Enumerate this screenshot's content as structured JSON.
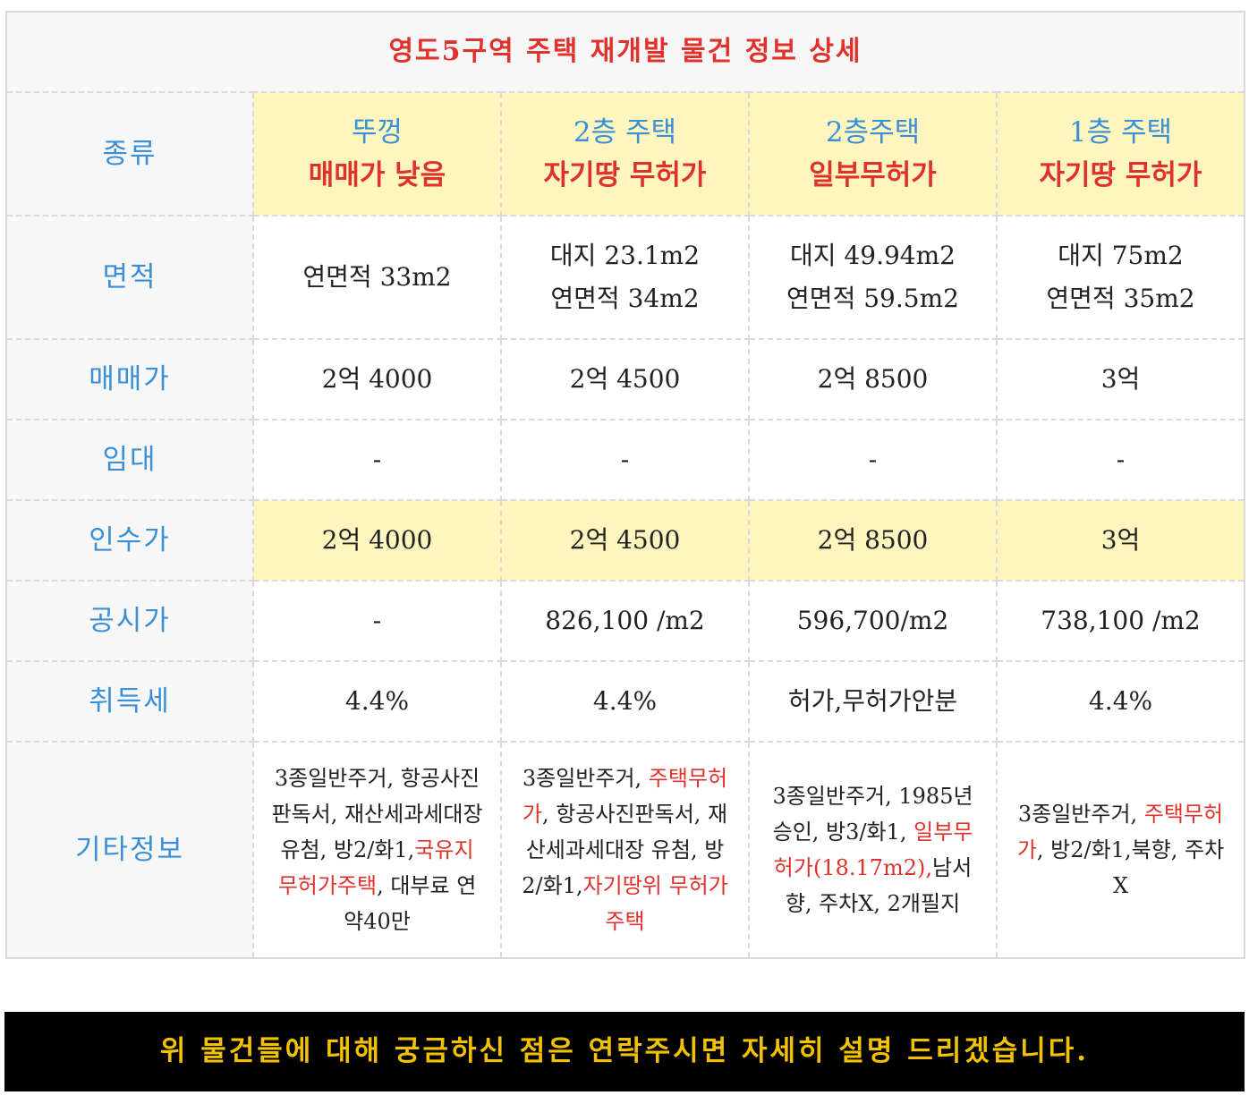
{
  "title": "영도5구역 주택 재개발 물건 정보 상세",
  "labels": {
    "type": "종류",
    "area": "면적",
    "sale": "매매가",
    "rent": "임대",
    "acq": "인수가",
    "official": "공시가",
    "tax": "취득세",
    "notes": "기타정보"
  },
  "columns": [
    {
      "type_line1": "뚜껑",
      "type_line2": "매매가 낮음",
      "area_line1": "연면적 33m2",
      "area_line2": "",
      "sale": "2억 4000",
      "rent": "-",
      "acq": "2억 4000",
      "official": "-",
      "tax": "4.4%",
      "notes": [
        {
          "text": "3종일반주거, 항공사진판독서, 재산세과세대장 유첨, 방2/화1,",
          "red": false
        },
        {
          "text": "국유지 무허가주택",
          "red": true
        },
        {
          "text": ", 대부료 연약40만",
          "red": false
        }
      ]
    },
    {
      "type_line1": "2층 주택",
      "type_line2": "자기땅 무허가",
      "area_line1": "대지 23.1m2",
      "area_line2": "연면적 34m2",
      "sale": "2억 4500",
      "rent": "-",
      "acq": "2억 4500",
      "official": "826,100 /m2",
      "tax": "4.4%",
      "notes": [
        {
          "text": "3종일반주거, ",
          "red": false
        },
        {
          "text": "주택무허가",
          "red": true
        },
        {
          "text": ", 항공사진판독서, 재산세과세대장 유첨, 방2/화1,",
          "red": false
        },
        {
          "text": "자기땅위 무허가주택",
          "red": true
        }
      ]
    },
    {
      "type_line1": "2층주택",
      "type_line2": "일부무허가",
      "area_line1": "대지 49.94m2",
      "area_line2": "연면적 59.5m2",
      "sale": "2억 8500",
      "rent": "-",
      "acq": "2억 8500",
      "official": "596,700/m2",
      "tax": "허가,무허가안분",
      "notes": [
        {
          "text": "3종일반주거, 1985년 승인, 방3/화1, ",
          "red": false
        },
        {
          "text": "일부무허가(18.17m2),",
          "red": true
        },
        {
          "text": "남서향, 주차X, 2개필지",
          "red": false
        }
      ]
    },
    {
      "type_line1": "1층 주택",
      "type_line2": "자기땅 무허가",
      "area_line1": "대지 75m2",
      "area_line2": "연면적 35m2",
      "sale": "3억",
      "rent": "-",
      "acq": "3억",
      "official": "738,100 /m2",
      "tax": "4.4%",
      "notes": [
        {
          "text": "3종일반주거, ",
          "red": false
        },
        {
          "text": "주택무허가",
          "red": true
        },
        {
          "text": ", 방2/화1,북향, 주차X",
          "red": false
        }
      ]
    }
  ],
  "footer": "위 물건들에 대해 궁금하신 점은 연락주시면 자세히 설명 드리겠습니다.",
  "colors": {
    "accent_blue": "#3a8fd6",
    "accent_red": "#e0322c",
    "highlight_yellow": "#fff6bf",
    "banner_text": "#f2c200"
  }
}
